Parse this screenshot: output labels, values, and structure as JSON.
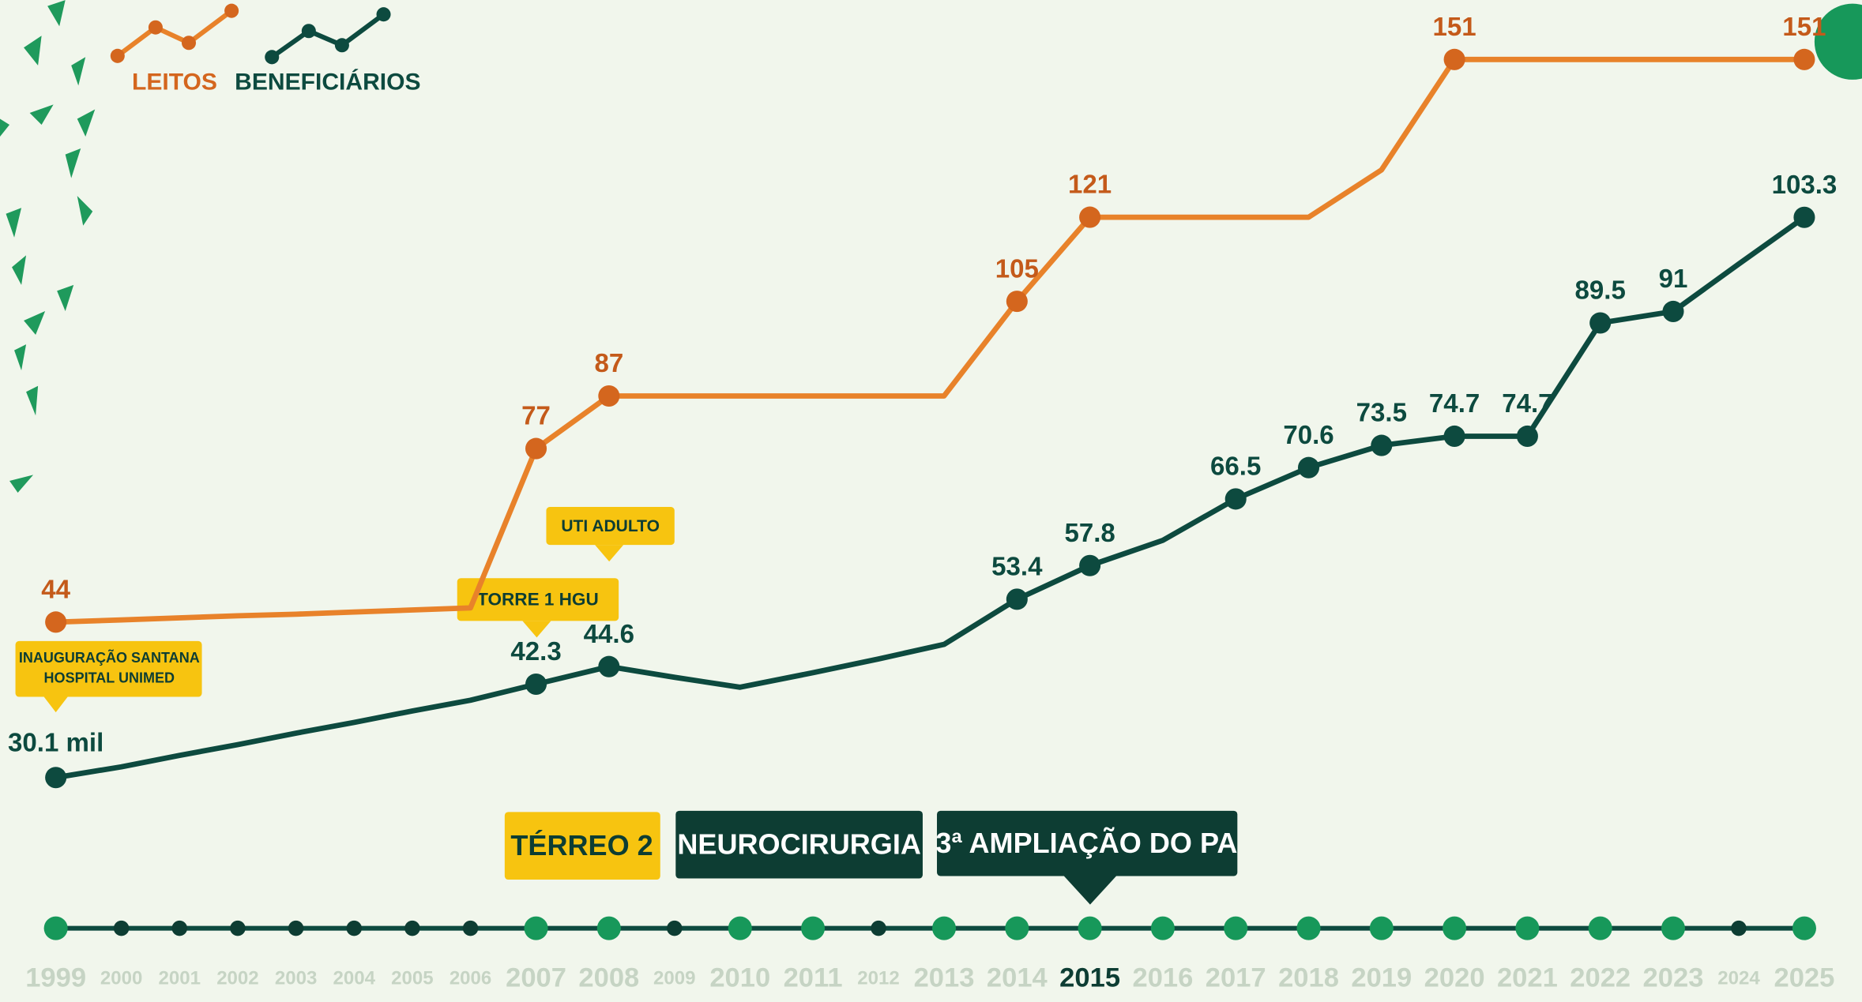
{
  "chart_data": {
    "type": "line",
    "categories": [
      "1999",
      "2000",
      "2001",
      "2002",
      "2003",
      "2004",
      "2005",
      "2006",
      "2007",
      "2008",
      "2009",
      "2010",
      "2011",
      "2012",
      "2013",
      "2014",
      "2015",
      "2016",
      "2017",
      "2018",
      "2019",
      "2020",
      "2021",
      "2022",
      "2023",
      "2024",
      "2025"
    ],
    "series": [
      {
        "name": "LEITOS",
        "color": "#e8822a",
        "values": [
          44,
          44.4,
          44.8,
          45.2,
          45.5,
          45.9,
          46.3,
          46.7,
          77,
          87,
          87,
          87,
          87,
          87,
          87,
          105,
          121,
          121,
          121,
          121,
          130,
          151,
          151,
          151,
          151,
          151,
          151
        ],
        "value_labels": [
          "44",
          null,
          null,
          null,
          null,
          null,
          null,
          null,
          "77",
          "87",
          null,
          null,
          null,
          null,
          null,
          "105",
          "121",
          null,
          null,
          null,
          null,
          "151",
          null,
          null,
          null,
          null,
          "151"
        ]
      },
      {
        "name": "BENEFICIÁRIOS",
        "color": "#0d4a3f",
        "values": [
          30.1,
          31.5,
          33.0,
          34.4,
          35.9,
          37.3,
          38.8,
          40.2,
          42.3,
          44.6,
          43.2,
          41.9,
          43.8,
          45.6,
          47.5,
          53.4,
          57.8,
          61.1,
          66.5,
          70.6,
          73.5,
          74.7,
          74.7,
          89.5,
          91,
          97.2,
          103.3
        ],
        "value_labels": [
          "30.1 mil",
          null,
          null,
          null,
          null,
          null,
          null,
          null,
          "42.3",
          "44.6",
          null,
          null,
          null,
          null,
          null,
          "53.4",
          "57.8",
          null,
          "66.5",
          "70.6",
          "73.5",
          "74.7",
          "74.7",
          "89.5",
          "91",
          null,
          "103.3"
        ]
      }
    ],
    "highlighted_categories": [
      "1999",
      "2007",
      "2008",
      "2010",
      "2011",
      "2013",
      "2014",
      "2015",
      "2016",
      "2017",
      "2018",
      "2019",
      "2020",
      "2021",
      "2022",
      "2023",
      "2025"
    ],
    "selected_category": "2015",
    "annotations": {
      "inauguracao": [
        "INAUGURAÇÃO SANTANA",
        "HOSPITAL UNIMED"
      ],
      "torre": "TORRE 1 HGU",
      "uti": "UTI ADULTO",
      "terreo": "TÉRREO 2",
      "neuro": "NEUROCIRURGIA",
      "ampliacao": "3ª AMPLIAÇÃO DO PA"
    }
  }
}
